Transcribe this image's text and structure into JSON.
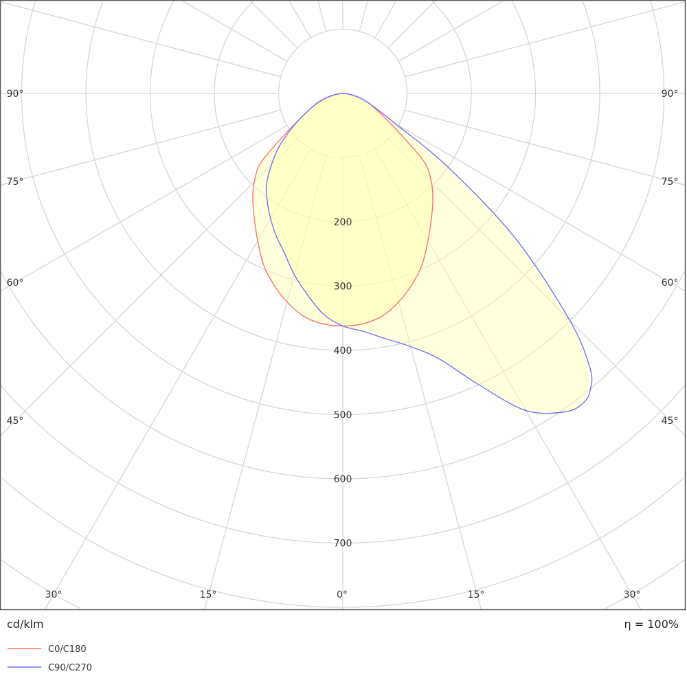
{
  "chart_data": {
    "type": "polar",
    "unit_label": "cd/klm",
    "efficiency_label": "η = 100%",
    "radial_ticks": [
      100,
      200,
      300,
      400,
      500,
      600,
      700,
      800,
      900,
      1000
    ],
    "radial_tick_labels": [
      "200",
      "300",
      "400",
      "500",
      "600",
      "700"
    ],
    "angle_tick_labels": [
      "90°",
      "75°",
      "60°",
      "45°",
      "30°",
      "15°",
      "0°",
      "15°",
      "30°",
      "45°",
      "60°",
      "75°",
      "90°"
    ],
    "angle_grid_step_deg": 15,
    "grid": true,
    "legend_position": "bottom-left",
    "colors": {
      "C0/C180": "#ff7070",
      "C90/C270": "#7070ff",
      "fill": "#ffffb0"
    },
    "series": [
      {
        "name": "C0/C180",
        "angles": [
          -90,
          -85,
          -80,
          -75,
          -70,
          -65,
          -60,
          -55,
          -50,
          -45,
          -40,
          -35,
          -30,
          -25,
          -20,
          -15,
          -10,
          -5,
          0,
          5,
          10,
          15,
          20,
          25,
          30,
          35,
          40,
          45,
          50,
          55,
          60,
          65,
          70,
          75,
          80,
          85,
          90
        ],
        "values": [
          0,
          6,
          16,
          28,
          42,
          55,
          75,
          108,
          165,
          195,
          218,
          240,
          265,
          293,
          316,
          336,
          352,
          360,
          362,
          360,
          352,
          336,
          316,
          293,
          265,
          240,
          218,
          195,
          165,
          108,
          75,
          55,
          42,
          28,
          16,
          6,
          0
        ]
      },
      {
        "name": "C90/C270",
        "angles": [
          -90,
          -85,
          -80,
          -75,
          -70,
          -65,
          -60,
          -55,
          -50,
          -45,
          -40,
          -35,
          -30,
          -25,
          -20,
          -15,
          -10,
          -5,
          0,
          5,
          10,
          15,
          20,
          25,
          30,
          35,
          38,
          40,
          42,
          45,
          50,
          55,
          60,
          65,
          70,
          75,
          80,
          85,
          90
        ],
        "values": [
          0,
          5,
          14,
          26,
          40,
          55,
          75,
          100,
          130,
          157,
          185,
          205,
          225,
          245,
          265,
          292,
          318,
          345,
          362,
          372,
          388,
          408,
          440,
          500,
          570,
          605,
          610,
          600,
          575,
          500,
          350,
          200,
          95,
          60,
          42,
          28,
          16,
          6,
          0
        ]
      }
    ]
  }
}
